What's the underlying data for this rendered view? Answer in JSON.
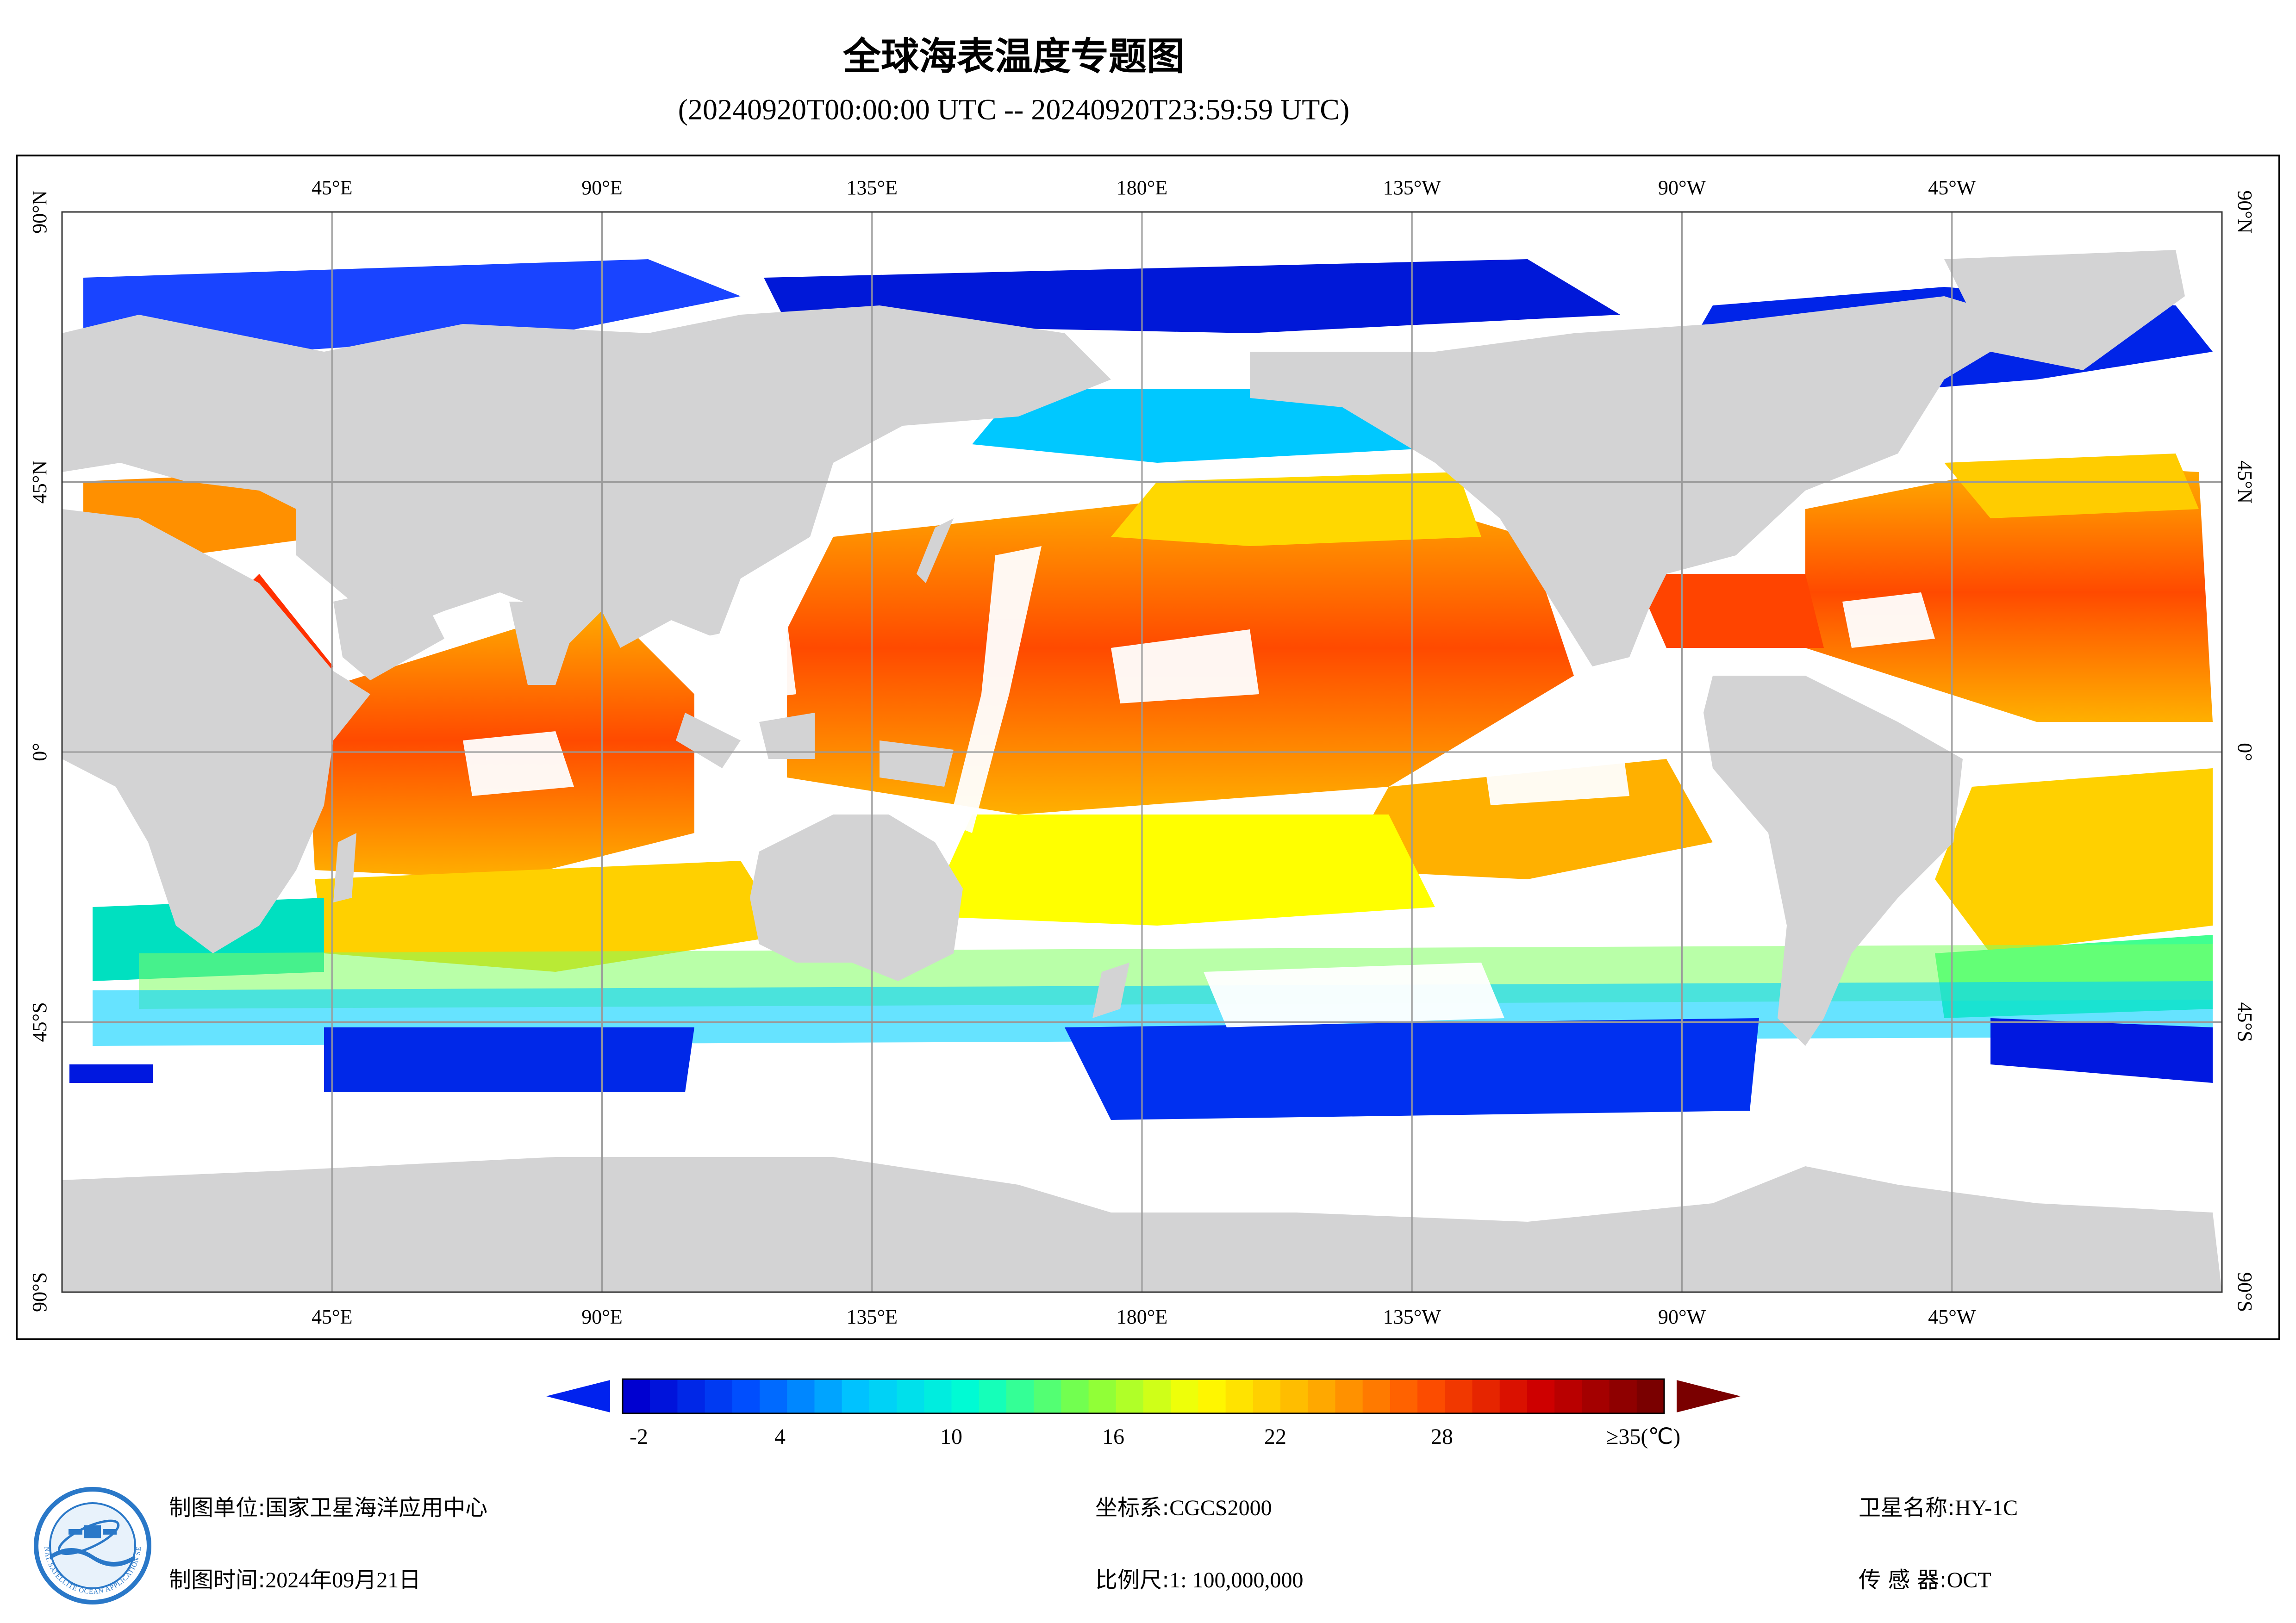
{
  "title": "全球海表温度专题图",
  "subtitle": "(20240920T00:00:00 UTC -- 20240920T23:59:59 UTC)",
  "map": {
    "projection": "equirectangular",
    "lon_range": [
      0,
      360
    ],
    "lat_range": [
      -90,
      90
    ],
    "lon_grid_step": 45,
    "lat_grid_step": 45,
    "colors": {
      "land": "#d3d3d4",
      "no_data": "#ffffff",
      "grid": "#9a9a9a"
    },
    "lon_labels": [
      "45°E",
      "90°E",
      "135°E",
      "180°E",
      "135°W",
      "90°W",
      "45°W"
    ],
    "lat_labels": [
      "90°N",
      "45°N",
      "0°",
      "45°S",
      "90°S"
    ]
  },
  "colorbar": {
    "tick_labels": [
      "-2",
      "4",
      "10",
      "16",
      "22",
      "28",
      "≥35(℃)"
    ],
    "colors": [
      "#0000d0",
      "#0050ff",
      "#00c8ff",
      "#00ffd0",
      "#80ff40",
      "#ffff00",
      "#ffb000",
      "#ff5000",
      "#d00000",
      "#7a0000"
    ],
    "under_color": "#0022ee",
    "over_color": "#7a0000"
  },
  "footer": {
    "unit_label": "制图单位:",
    "unit_value": "国家卫星海洋应用中心",
    "time_label": "制图时间:",
    "time_value": "2024年09月21日",
    "crs_label": "坐标系:",
    "crs_value": "CGCS2000",
    "scale_label": "比例尺:",
    "scale_value": "1: 100,000,000",
    "sat_label": "卫星名称:",
    "sat_value": "HY-1C",
    "sensor_label": "传 感 器:",
    "sensor_value": "OCT"
  },
  "logo": {
    "name": "national-satellite-ocean-center-logo",
    "text": "NATIONAL SATELLITE OCEAN APPLICATION SERVICE"
  }
}
